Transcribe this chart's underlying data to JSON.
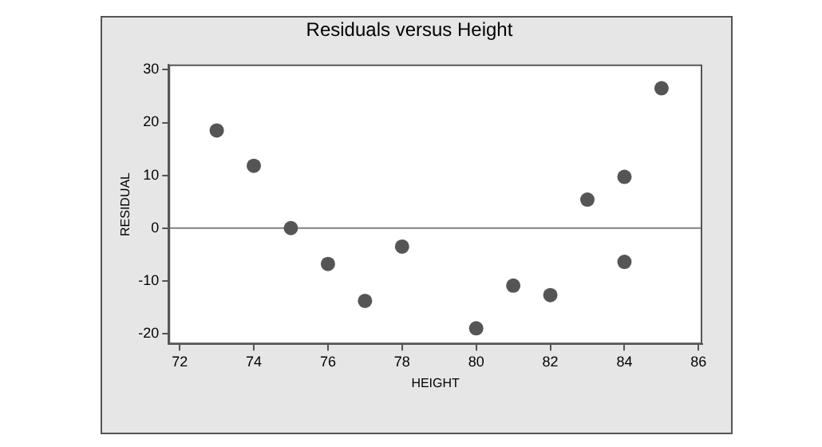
{
  "chart_data": {
    "type": "scatter",
    "title": "Residuals versus Height",
    "xlabel": "HEIGHT",
    "ylabel": "RESIDUAL",
    "x": [
      73,
      74,
      75,
      76,
      77,
      78,
      80,
      81,
      82,
      83,
      84,
      84,
      85
    ],
    "series": [
      {
        "color": "#555555",
        "values": [
          18.5,
          11.8,
          0,
          -6.8,
          -13.8,
          -3.5,
          -19,
          -10.9,
          -12.7,
          5.4,
          9.7,
          -6.4,
          26.5
        ]
      }
    ],
    "xlim": [
      71.7,
      86.1
    ],
    "xticks": [
      72,
      74,
      76,
      78,
      80,
      82,
      84,
      86
    ],
    "ylim": [
      -22,
      31
    ],
    "yticks": [
      -20,
      -10,
      0,
      10,
      20,
      30
    ],
    "ref_lines": [
      {
        "axis": "y",
        "value": 0,
        "color": "#808080"
      }
    ],
    "grid": false,
    "legend": false,
    "marker": "circle"
  }
}
